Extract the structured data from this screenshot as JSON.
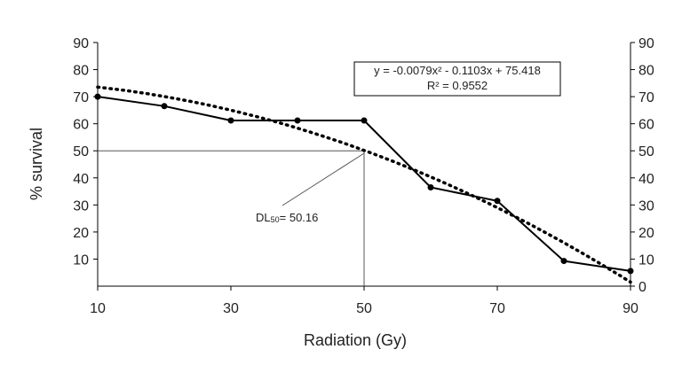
{
  "chart_data": {
    "type": "line",
    "xlabel": "Radiation (Gy)",
    "ylabel": "% survival",
    "xlim": [
      10,
      90
    ],
    "ylim": [
      0,
      90
    ],
    "x_ticks": [
      "10",
      "30",
      "50",
      "70",
      "90"
    ],
    "y_ticks_left": [
      "10",
      "20",
      "30",
      "40",
      "50",
      "60",
      "70",
      "80",
      "90"
    ],
    "y_ticks_right": [
      "0",
      "10",
      "20",
      "30",
      "40",
      "50",
      "60",
      "70",
      "80",
      "90"
    ],
    "series": [
      {
        "x": [
          10,
          20,
          30,
          40,
          50,
          60,
          70,
          80,
          90
        ],
        "values": [
          70,
          66.5,
          61.2,
          61.2,
          61.2,
          36.5,
          31.5,
          9.3,
          5.6
        ],
        "style": "solid-line-with-markers",
        "color": "#000000"
      }
    ],
    "trendline": {
      "type": "polynomial",
      "coefficients": [
        -0.0079,
        -0.1103,
        75.418
      ],
      "equation": "y = -0.0079x² - 0.1103x + 75.418",
      "r_squared": "R² = 0.9552",
      "style": "dotted",
      "color": "#000000"
    },
    "annotation": {
      "label": "DL",
      "subscript": "50",
      "value_text": "= 50.16",
      "x": 50,
      "y": 50
    },
    "grid": false,
    "legend": "none"
  }
}
